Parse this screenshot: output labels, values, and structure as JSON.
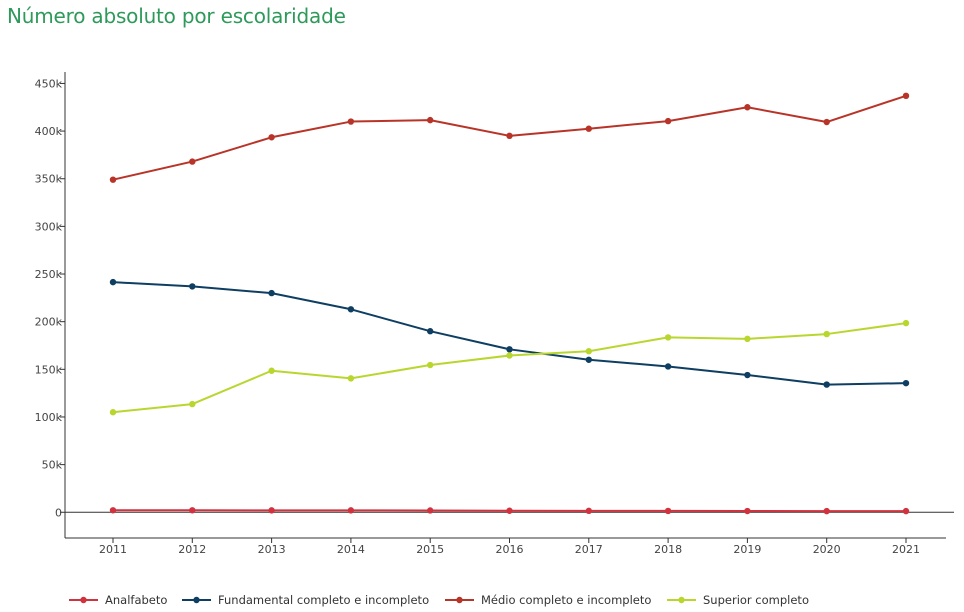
{
  "title": "Número absoluto por escolaridade",
  "chart_data": {
    "type": "line",
    "title": "Número absoluto por escolaridade",
    "xlabel": "",
    "ylabel": "",
    "x": [
      "2011",
      "2012",
      "2013",
      "2014",
      "2015",
      "2016",
      "2017",
      "2018",
      "2019",
      "2020",
      "2021"
    ],
    "ylim": [
      -27000,
      462000
    ],
    "yticks": [
      0,
      50000,
      100000,
      150000,
      200000,
      250000,
      300000,
      350000,
      400000,
      450000
    ],
    "ytick_labels": [
      "0",
      "50k",
      "100k",
      "150k",
      "200k",
      "250k",
      "300k",
      "350k",
      "400k",
      "450k"
    ],
    "grid": false,
    "legend_position": "bottom",
    "series": [
      {
        "name": "Analfabeto",
        "color": "#d0323e",
        "values": [
          2100,
          2100,
          2000,
          2000,
          1900,
          1600,
          1500,
          1400,
          1300,
          1200,
          1200
        ]
      },
      {
        "name": "Fundamental completo e incompleto",
        "color": "#0e3e62",
        "values": [
          241500,
          237000,
          230000,
          213000,
          190000,
          171000,
          160000,
          153000,
          144000,
          134000,
          135500
        ]
      },
      {
        "name": "Médio completo e incompleto",
        "color": "#b93428",
        "values": [
          349000,
          368000,
          393500,
          410000,
          411500,
          395000,
          402500,
          410500,
          425000,
          409500,
          437000
        ]
      },
      {
        "name": "Superior completo",
        "color": "#b9d62f",
        "values": [
          105000,
          113500,
          148500,
          140500,
          154500,
          164500,
          169000,
          183500,
          182000,
          187000,
          198500
        ]
      }
    ]
  }
}
